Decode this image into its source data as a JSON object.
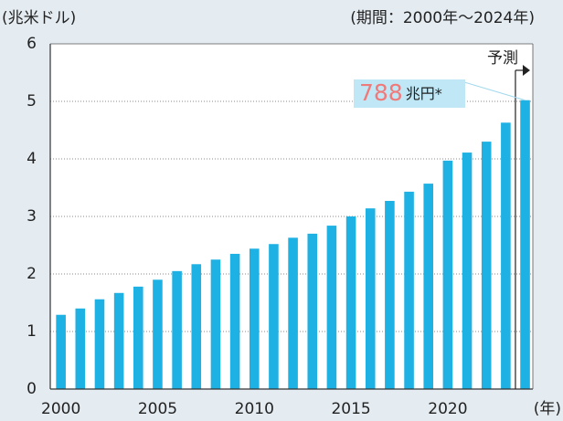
{
  "chart_data": {
    "type": "bar",
    "y_label": "(兆米ドル)",
    "subtitle": "(期間：2000年～2024年)",
    "x_label": "(年)",
    "x": [
      2000,
      2001,
      2002,
      2003,
      2004,
      2005,
      2006,
      2007,
      2008,
      2009,
      2010,
      2011,
      2012,
      2013,
      2014,
      2015,
      2016,
      2017,
      2018,
      2019,
      2020,
      2021,
      2022,
      2023,
      2024
    ],
    "values": [
      1.29,
      1.4,
      1.56,
      1.67,
      1.78,
      1.9,
      2.05,
      2.17,
      2.25,
      2.35,
      2.44,
      2.52,
      2.63,
      2.7,
      2.84,
      3.0,
      3.14,
      3.27,
      3.43,
      3.57,
      3.97,
      4.11,
      4.3,
      4.63,
      5.02
    ],
    "color": "#1eb1e3",
    "xlim": [
      1999.45,
      2024.4
    ],
    "xticks": [
      2000,
      2005,
      2010,
      2015,
      2020
    ],
    "ylim": [
      0,
      6
    ],
    "yticks": [
      0,
      1,
      2,
      3,
      4,
      5,
      6
    ],
    "grid": true,
    "forecast": {
      "label": "予測",
      "x": 2023.5
    },
    "annotation": {
      "number": "788",
      "unit": "兆円*",
      "color": "#f07a7a",
      "box_color": "#bfe7f6"
    }
  }
}
